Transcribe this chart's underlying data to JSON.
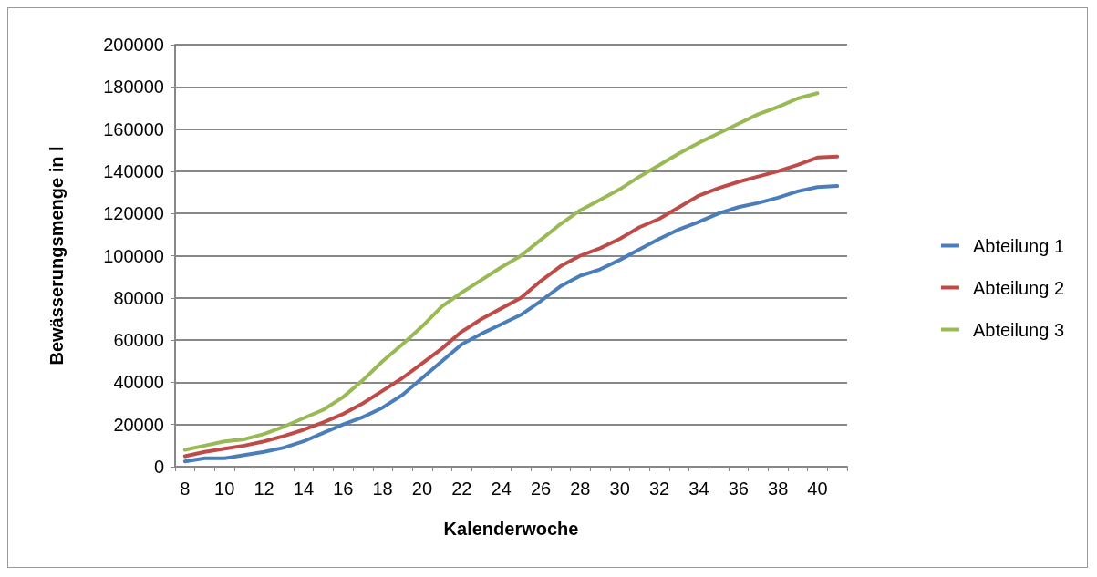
{
  "chart_data": {
    "type": "line",
    "xlabel": "Kalenderwoche",
    "ylabel": "Bewässerungsmenge in l",
    "categories": [
      "8",
      null,
      "10",
      null,
      "12",
      null,
      "14",
      null,
      "16",
      null,
      "18",
      null,
      "20",
      null,
      "22",
      null,
      "24",
      null,
      "26",
      null,
      "28",
      null,
      "30",
      null,
      "32",
      null,
      "34",
      null,
      "36",
      null,
      "38",
      null,
      "40",
      null
    ],
    "series": [
      {
        "name": "Abteilung 1",
        "color": "#4a7ebb",
        "values": [
          2500,
          4000,
          4000,
          5500,
          7000,
          9000,
          12000,
          16000,
          20000,
          23500,
          28000,
          34000,
          42000,
          50000,
          58000,
          63000,
          67500,
          72000,
          78500,
          85500,
          90500,
          93500,
          98000,
          103000,
          108000,
          112500,
          116000,
          120000,
          123000,
          125000,
          127500,
          130500,
          132500,
          133000
        ]
      },
      {
        "name": "Abteilung 2",
        "color": "#be4b48",
        "values": [
          5000,
          7000,
          8500,
          10000,
          12000,
          14500,
          17500,
          21000,
          25000,
          30000,
          36000,
          42000,
          49000,
          56000,
          64000,
          70000,
          75000,
          80000,
          88000,
          95000,
          100000,
          103500,
          108000,
          113500,
          117500,
          123000,
          128500,
          132000,
          135000,
          137500,
          140000,
          143000,
          146500,
          147000
        ]
      },
      {
        "name": "Abteilung 3",
        "color": "#98b954",
        "values": [
          8000,
          10000,
          12000,
          13000,
          15500,
          19000,
          23000,
          27000,
          33000,
          41000,
          50000,
          58000,
          66500,
          76000,
          82500,
          88500,
          94500,
          100000,
          107500,
          115000,
          121500,
          126500,
          131500,
          137500,
          143000,
          148500,
          153500,
          158000,
          162500,
          167000,
          170500,
          174500,
          177000,
          null
        ]
      }
    ],
    "ylim": [
      0,
      200000
    ],
    "yticks": [
      0,
      20000,
      40000,
      60000,
      80000,
      100000,
      120000,
      140000,
      160000,
      180000,
      200000
    ],
    "grid": "y",
    "legend": "right",
    "marker": "none",
    "line_style": "solid"
  }
}
